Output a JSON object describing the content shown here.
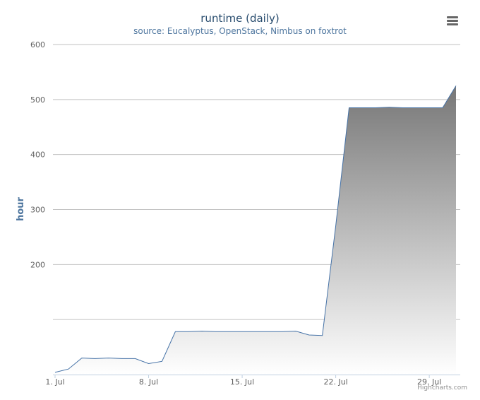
{
  "chart_data": {
    "type": "area",
    "title": "runtime (daily)",
    "subtitle": "source: Eucalyptus, OpenStack, Nimbus on foxtrot",
    "ylabel": "hour",
    "xlabel": "",
    "ylim": [
      0,
      600
    ],
    "yticks": [
      200,
      300,
      400,
      500,
      600
    ],
    "xticks": [
      "1. Jul",
      "8. Jul",
      "15. Jul",
      "22. Jul",
      "29. Jul"
    ],
    "xtick_days": [
      1,
      8,
      15,
      22,
      29
    ],
    "xlim_days": [
      1,
      31
    ],
    "grid": true,
    "legend": "none",
    "line_color": "#4572A7",
    "fill_top_color": "#777777",
    "fill_bottom_color": "#ffffff",
    "series": [
      {
        "x": [
          1,
          2,
          3,
          4,
          5,
          6,
          7,
          8,
          9,
          10,
          11,
          12,
          13,
          14,
          15,
          16,
          17,
          18,
          19,
          20,
          21,
          22,
          23,
          24,
          25,
          26,
          27,
          28,
          29,
          30,
          31
        ],
        "values": [
          4,
          10,
          30,
          29,
          30,
          29,
          29,
          20,
          24,
          78,
          78,
          79,
          78,
          78,
          78,
          78,
          78,
          78,
          79,
          72,
          71,
          270,
          485,
          485,
          485,
          486,
          485,
          485,
          485,
          485,
          525
        ]
      }
    ]
  },
  "credits": "Highcharts.com",
  "menu": {
    "icon": "menu-icon"
  }
}
